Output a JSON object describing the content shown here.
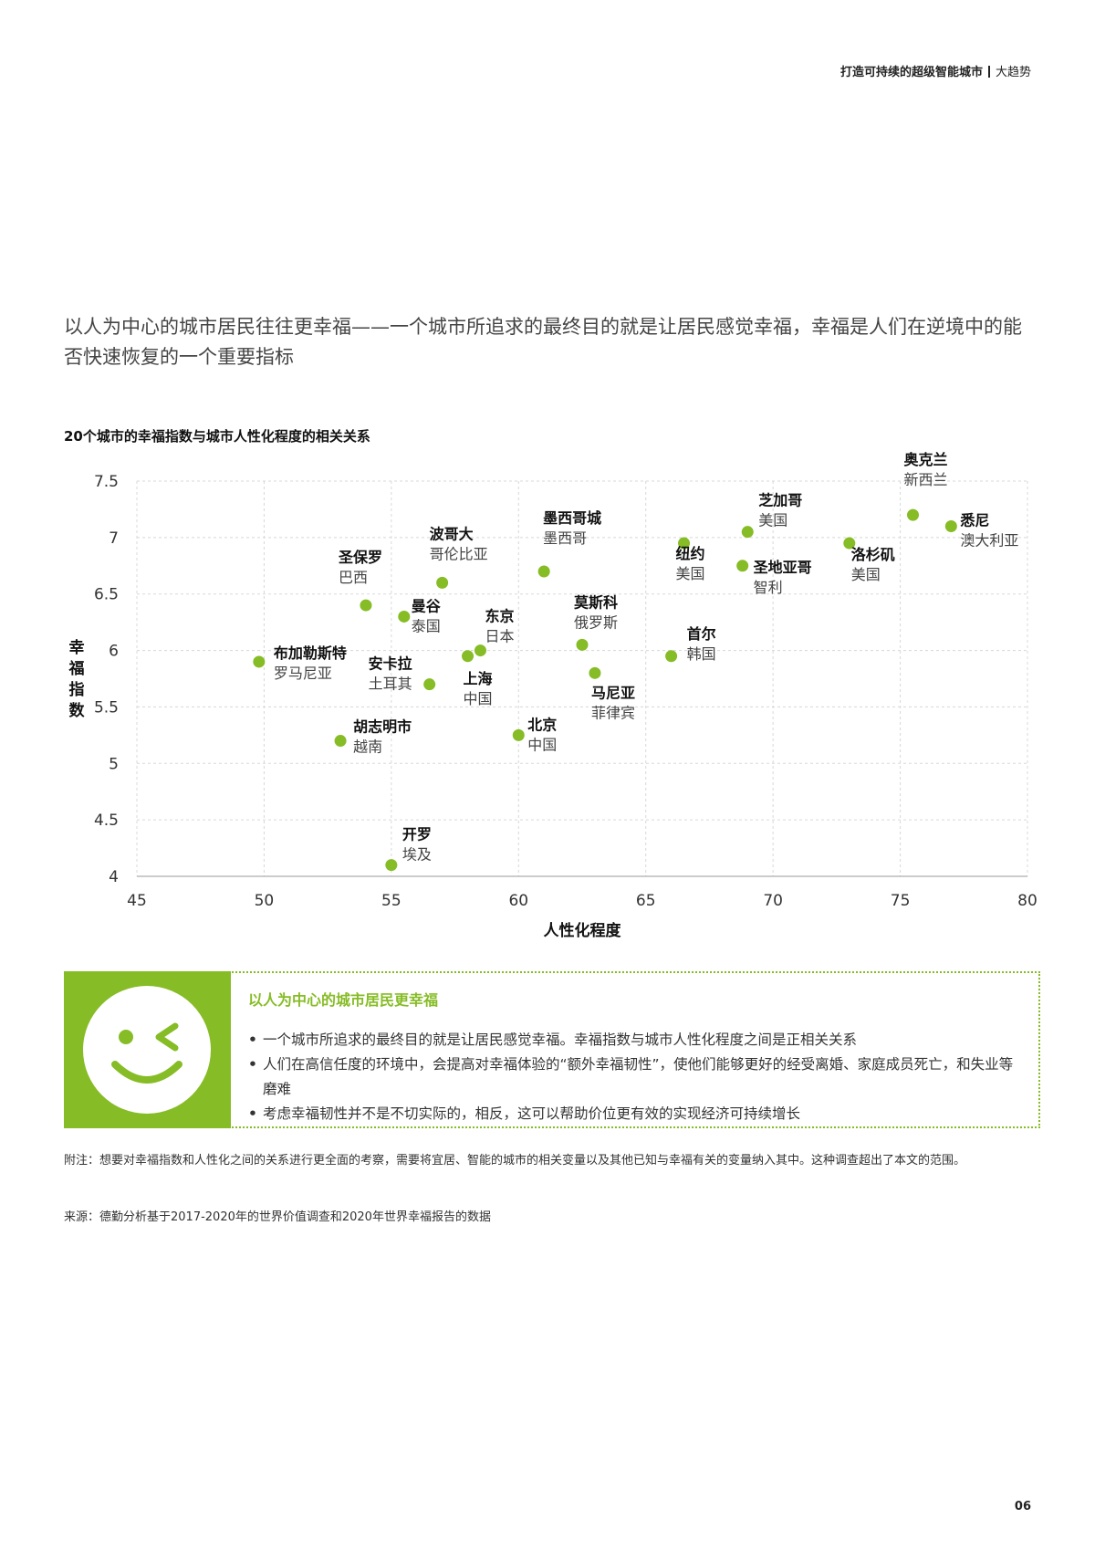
{
  "header": {
    "title": "打造可持续的超级智能城市",
    "section": "大趋势"
  },
  "headline": "以人为中心的城市居民往往更幸福——一个城市所追求的最终目的就是让居民感觉幸福，幸福是人们在逆境中的能否快速恢复的一个重要指标",
  "chart_data": {
    "type": "scatter",
    "title": "20个城市的幸福指数与城市人性化程度的相关关系",
    "xlabel": "人性化程度",
    "ylabel": "幸福指数",
    "xlim": [
      45,
      80
    ],
    "ylim": [
      4,
      7.5
    ],
    "xticks": [
      45,
      50,
      55,
      60,
      65,
      70,
      75,
      80
    ],
    "yticks": [
      4,
      4.5,
      5,
      5.5,
      6,
      6.5,
      7,
      7.5
    ],
    "grid": true,
    "point_color": "#86bc25",
    "points": [
      {
        "city": "奥克兰",
        "country": "新西兰",
        "x": 75.5,
        "y": 7.2
      },
      {
        "city": "悉尼",
        "country": "澳大利亚",
        "x": 77.0,
        "y": 7.1
      },
      {
        "city": "芝加哥",
        "country": "美国",
        "x": 69.0,
        "y": 7.05
      },
      {
        "city": "洛杉矶",
        "country": "美国",
        "x": 73.0,
        "y": 6.95
      },
      {
        "city": "纽约",
        "country": "美国",
        "x": 66.5,
        "y": 6.95
      },
      {
        "city": "圣地亚哥",
        "country": "智利",
        "x": 68.8,
        "y": 6.75
      },
      {
        "city": "墨西哥城",
        "country": "墨西哥",
        "x": 61.0,
        "y": 6.7
      },
      {
        "city": "波哥大",
        "country": "哥伦比亚",
        "x": 57.0,
        "y": 6.6
      },
      {
        "city": "圣保罗",
        "country": "巴西",
        "x": 54.0,
        "y": 6.4
      },
      {
        "city": "曼谷",
        "country": "泰国",
        "x": 55.5,
        "y": 6.3
      },
      {
        "city": "莫斯科",
        "country": "俄罗斯",
        "x": 62.5,
        "y": 6.05
      },
      {
        "city": "东京",
        "country": "日本",
        "x": 58.5,
        "y": 6.0
      },
      {
        "city": "首尔",
        "country": "韩国",
        "x": 66.0,
        "y": 5.95
      },
      {
        "city": "上海",
        "country": "中国",
        "x": 58.0,
        "y": 5.95
      },
      {
        "city": "布加勒斯特",
        "country": "罗马尼亚",
        "x": 49.8,
        "y": 5.9
      },
      {
        "city": "马尼亚",
        "country": "菲律宾",
        "x": 63.0,
        "y": 5.8
      },
      {
        "city": "安卡拉",
        "country": "土耳其",
        "x": 56.5,
        "y": 5.7
      },
      {
        "city": "北京",
        "country": "中国",
        "x": 60.0,
        "y": 5.25
      },
      {
        "city": "胡志明市",
        "country": "越南",
        "x": 53.0,
        "y": 5.2
      },
      {
        "city": "开罗",
        "country": "埃及",
        "x": 55.0,
        "y": 4.1
      }
    ]
  },
  "callout": {
    "icon": "smiley-wink-icon",
    "title": "以人为中心的城市居民更幸福",
    "bullets": [
      "一个城市所追求的最终目的就是让居民感觉幸福。幸福指数与城市人性化程度之间是正相关关系",
      "人们在高信任度的环境中，会提高对幸福体验的“额外幸福韧性”，使他们能够更好的经受离婚、家庭成员死亡，和失业等磨难",
      "考虑幸福韧性并不是不切实际的，相反，这可以帮助价位更有效的实现经济可持续增长"
    ]
  },
  "note": "附注：想要对幸福指数和人性化之间的关系进行更全面的考察，需要将宜居、智能的城市的相关变量以及其他已知与幸福有关的变量纳入其中。这种调查超出了本文的范围。",
  "source": "来源：德勤分析基于2017-2020年的世界价值调查和2020年世界幸福报告的数据",
  "page_number": "06"
}
